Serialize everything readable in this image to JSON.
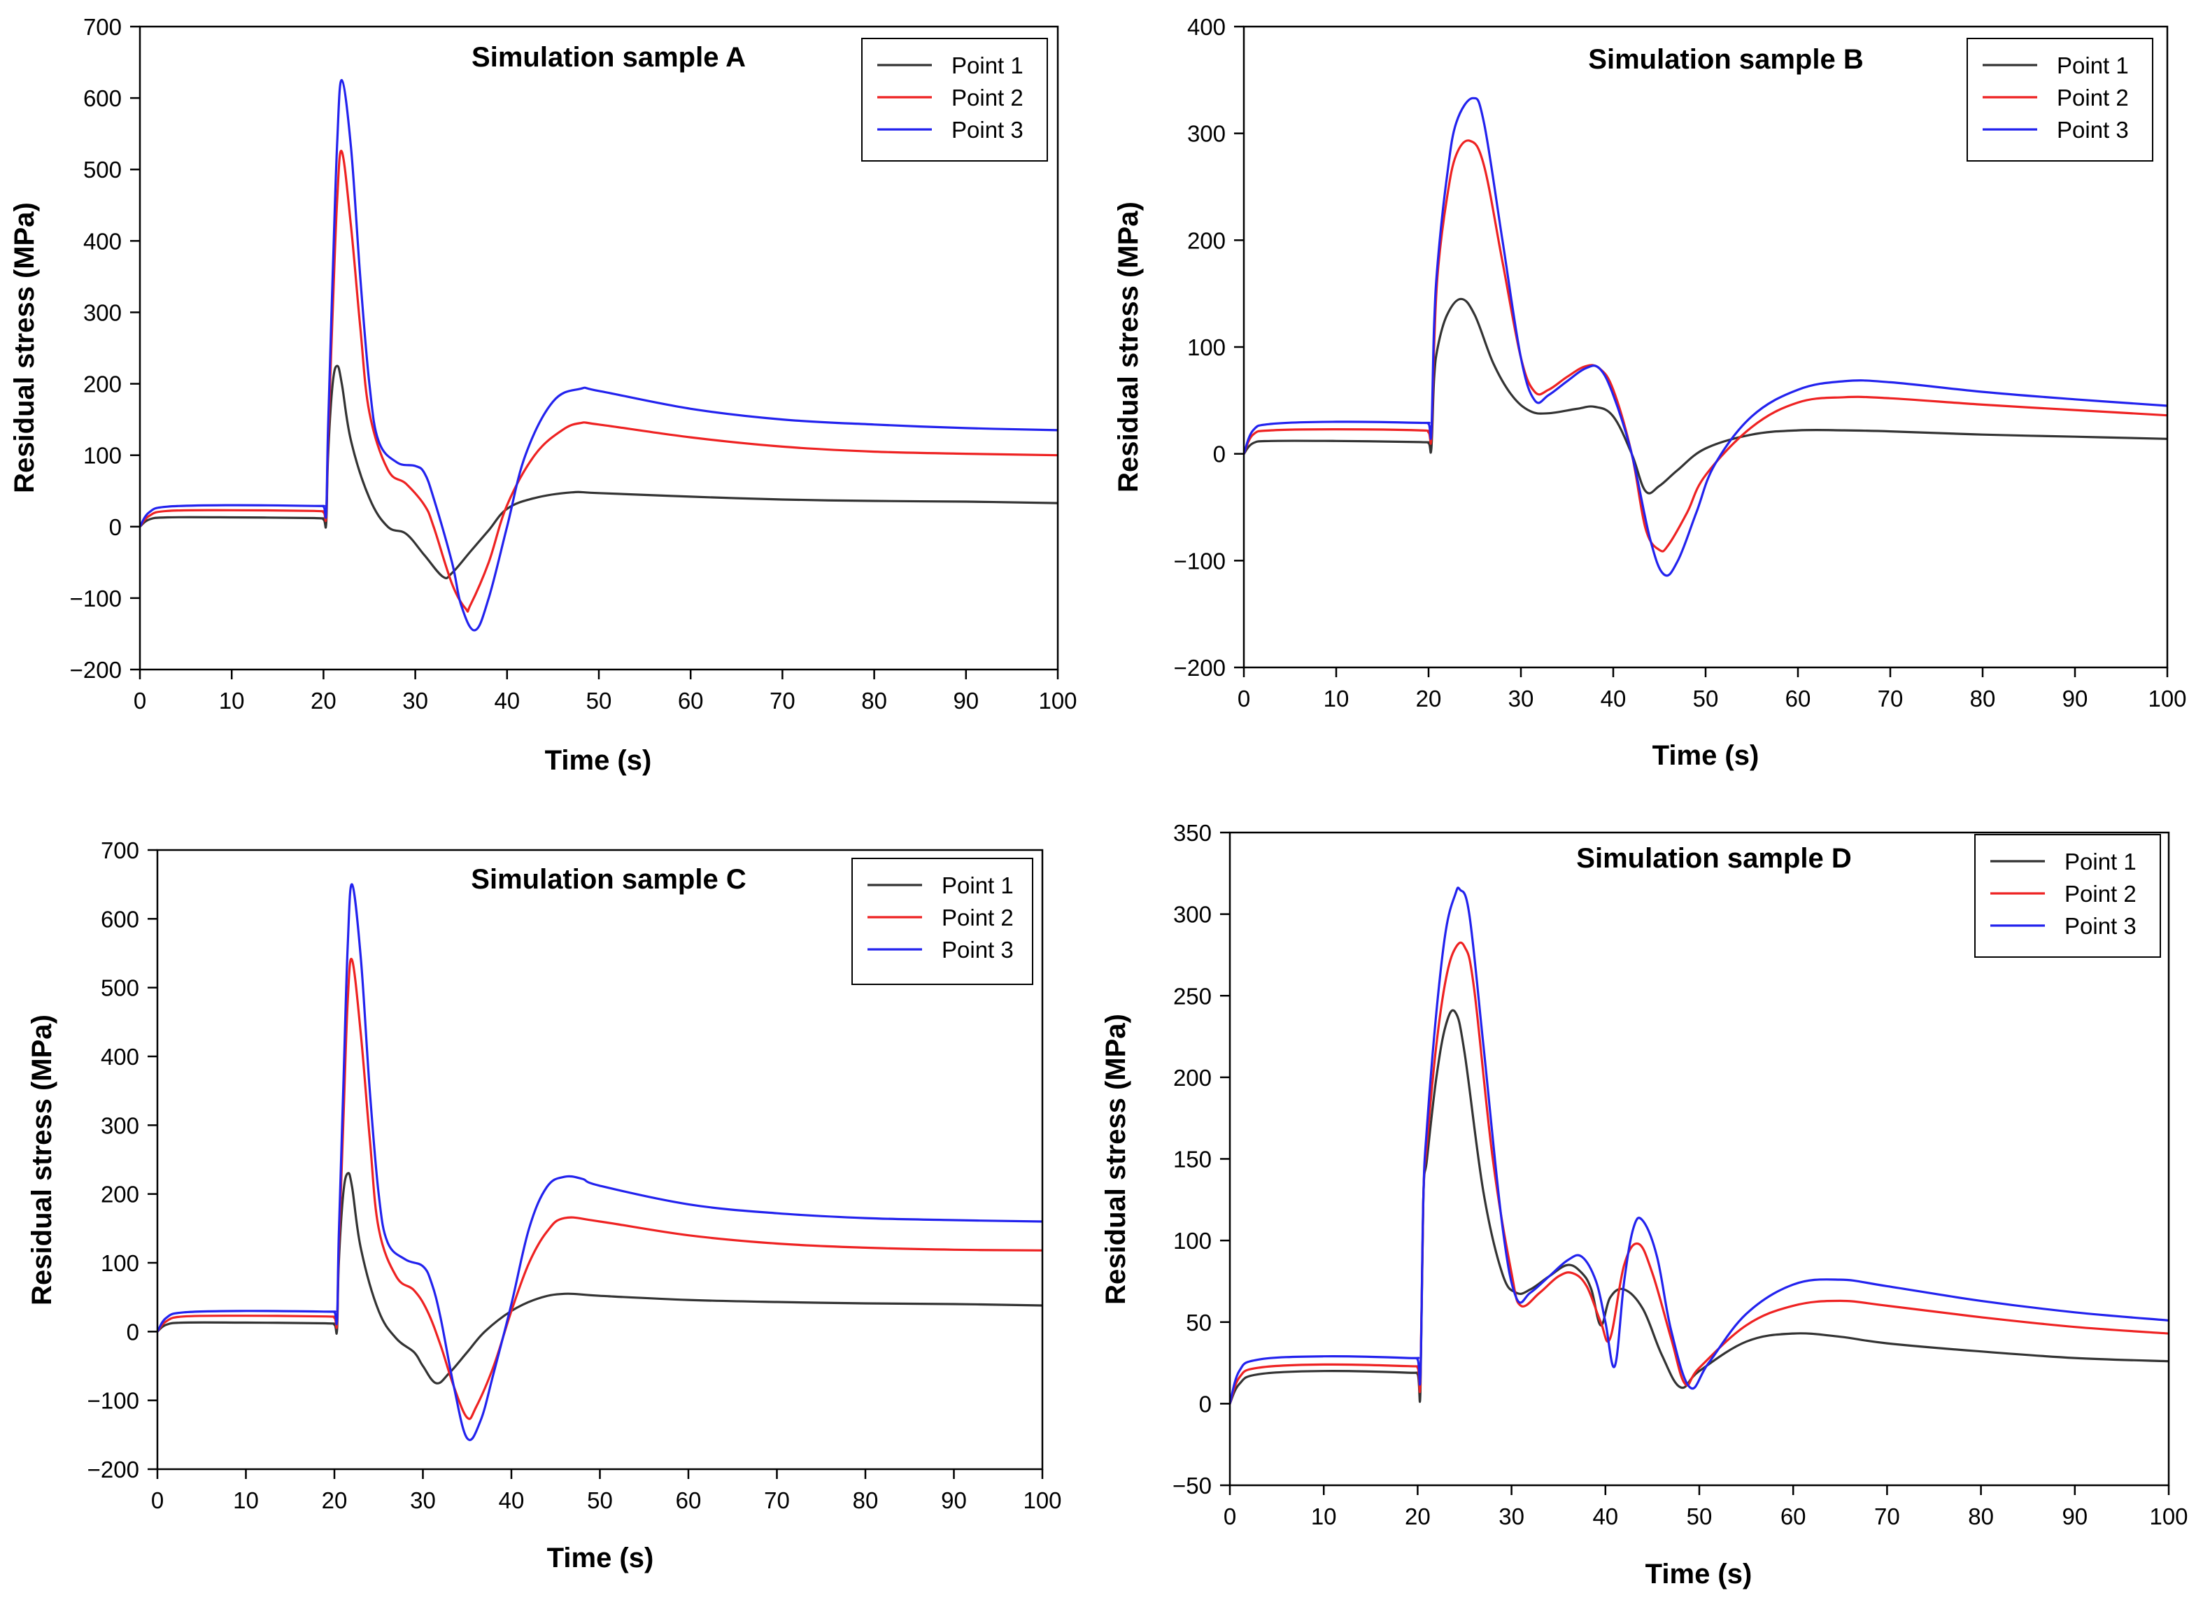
{
  "chart_data": [
    {
      "type": "line",
      "title": "Simulation sample A",
      "xlabel": "Time (s)",
      "ylabel": "Residual stress (MPa)",
      "xlim": [
        0,
        100
      ],
      "ylim": [
        -200,
        700
      ],
      "xticks": [
        0,
        10,
        20,
        30,
        40,
        50,
        60,
        70,
        80,
        90,
        100
      ],
      "yticks": [
        -200,
        -100,
        0,
        100,
        200,
        300,
        400,
        500,
        600,
        700
      ],
      "xtick_labels": [
        "0",
        "10",
        "20",
        "30",
        "40",
        "50",
        "60",
        "70",
        "80",
        "90",
        "100"
      ],
      "ytick_labels": [
        "−200",
        "−100",
        "0",
        "100",
        "200",
        "300",
        "400",
        "500",
        "600",
        "700"
      ],
      "legend": "top-right",
      "grid": false,
      "series": [
        {
          "name": "Point 1",
          "color": "#333333",
          "x": [
            0,
            1,
            3,
            10,
            19,
            20,
            20.3,
            20.5,
            21,
            21.5,
            22,
            23,
            25,
            27,
            29,
            31,
            33,
            34,
            36,
            38,
            40,
            43,
            47,
            50,
            60,
            70,
            80,
            90,
            100
          ],
          "y": [
            0,
            10,
            13,
            13,
            12,
            10,
            5,
            100,
            200,
            225,
            200,
            120,
            40,
            0,
            -10,
            -40,
            -70,
            -65,
            -35,
            -5,
            25,
            40,
            48,
            47,
            42,
            38,
            36,
            35,
            33
          ]
        },
        {
          "name": "Point 2",
          "color": "#ee2222",
          "x": [
            0,
            1,
            3,
            10,
            19,
            20,
            20.3,
            20.5,
            21,
            21.5,
            22,
            23,
            24,
            25,
            27,
            29,
            31,
            32,
            34,
            35.5,
            36,
            38,
            40,
            43,
            46,
            48,
            50,
            60,
            70,
            80,
            90,
            100
          ],
          "y": [
            0,
            15,
            22,
            23,
            22,
            20,
            15,
            120,
            300,
            460,
            525,
            420,
            280,
            160,
            80,
            60,
            30,
            0,
            -80,
            -115,
            -110,
            -50,
            30,
            100,
            135,
            145,
            143,
            125,
            112,
            105,
            102,
            100
          ]
        },
        {
          "name": "Point 3",
          "color": "#2222ee",
          "x": [
            0,
            1,
            3,
            10,
            19,
            20,
            20.3,
            20.5,
            21,
            21.5,
            22,
            23,
            24,
            25,
            26,
            28,
            30,
            31,
            32,
            34,
            35,
            36.5,
            38,
            40,
            42,
            45,
            48,
            50,
            60,
            70,
            80,
            90,
            100
          ],
          "y": [
            0,
            20,
            28,
            30,
            29,
            28,
            20,
            140,
            350,
            540,
            625,
            530,
            350,
            200,
            120,
            90,
            85,
            75,
            40,
            -50,
            -110,
            -145,
            -100,
            0,
            100,
            175,
            193,
            190,
            165,
            150,
            143,
            138,
            135
          ]
        }
      ]
    },
    {
      "type": "line",
      "title": "Simulation sample B",
      "xlabel": "Time (s)",
      "ylabel": "Residual stress (MPa)",
      "xlim": [
        0,
        100
      ],
      "ylim": [
        -200,
        400
      ],
      "xticks": [
        0,
        10,
        20,
        30,
        40,
        50,
        60,
        70,
        80,
        90,
        100
      ],
      "yticks": [
        -200,
        -100,
        0,
        100,
        200,
        300,
        400
      ],
      "xtick_labels": [
        "0",
        "10",
        "20",
        "30",
        "40",
        "50",
        "60",
        "70",
        "80",
        "90",
        "100"
      ],
      "ytick_labels": [
        "−200",
        "−100",
        "0",
        "100",
        "200",
        "300",
        "400"
      ],
      "legend": "top-right",
      "grid": false,
      "series": [
        {
          "name": "Point 1",
          "color": "#333333",
          "x": [
            0,
            1,
            3,
            10,
            19,
            20,
            20.3,
            20.6,
            21,
            22,
            23.5,
            25,
            27,
            29,
            31,
            33,
            36,
            38,
            40,
            42,
            43.5,
            45,
            47,
            50,
            55,
            60,
            65,
            70,
            80,
            90,
            100
          ],
          "y": [
            0,
            10,
            12,
            12,
            11,
            10,
            5,
            70,
            100,
            130,
            145,
            130,
            85,
            55,
            40,
            38,
            42,
            44,
            35,
            0,
            -35,
            -30,
            -15,
            5,
            18,
            22,
            22,
            21,
            18,
            16,
            14
          ]
        },
        {
          "name": "Point 2",
          "color": "#ee2222",
          "x": [
            0,
            1,
            3,
            10,
            19,
            20,
            20.3,
            20.6,
            21,
            22,
            23,
            24.5,
            26,
            28,
            30,
            31.5,
            33,
            35,
            37,
            38.5,
            40,
            42,
            43.5,
            45,
            46,
            48,
            50,
            55,
            60,
            65,
            70,
            80,
            90,
            100
          ],
          "y": [
            0,
            18,
            22,
            23,
            22,
            20,
            15,
            100,
            170,
            240,
            280,
            293,
            270,
            180,
            90,
            58,
            60,
            72,
            82,
            80,
            60,
            0,
            -70,
            -90,
            -85,
            -55,
            -20,
            25,
            48,
            53,
            52,
            46,
            41,
            36
          ]
        },
        {
          "name": "Point 3",
          "color": "#2222ee",
          "x": [
            0,
            1,
            3,
            10,
            19,
            20,
            20.3,
            20.6,
            21,
            22,
            23,
            24.8,
            26,
            28,
            30,
            31.5,
            33,
            35,
            37,
            38.5,
            40,
            42,
            44,
            45.5,
            47,
            49,
            51,
            55,
            60,
            65,
            70,
            80,
            90,
            100
          ],
          "y": [
            0,
            22,
            28,
            30,
            29,
            28,
            20,
            120,
            180,
            260,
            310,
            333,
            310,
            200,
            90,
            50,
            55,
            68,
            80,
            80,
            55,
            0,
            -80,
            -113,
            -100,
            -55,
            -10,
            35,
            60,
            68,
            67,
            58,
            51,
            45
          ]
        }
      ]
    },
    {
      "type": "line",
      "title": "Simulation sample C",
      "xlabel": "Time (s)",
      "ylabel": "Residual stress (MPa)",
      "xlim": [
        0,
        100
      ],
      "ylim": [
        -200,
        700
      ],
      "xticks": [
        0,
        10,
        20,
        30,
        40,
        50,
        60,
        70,
        80,
        90,
        100
      ],
      "yticks": [
        -200,
        -100,
        0,
        100,
        200,
        300,
        400,
        500,
        600,
        700
      ],
      "xtick_labels": [
        "0",
        "10",
        "20",
        "30",
        "40",
        "50",
        "60",
        "70",
        "80",
        "90",
        "100"
      ],
      "ytick_labels": [
        "−200",
        "−100",
        "0",
        "100",
        "200",
        "300",
        "400",
        "500",
        "600",
        "700"
      ],
      "legend": "top-right",
      "grid": false,
      "series": [
        {
          "name": "Point 1",
          "color": "#333333",
          "x": [
            0,
            1,
            3,
            10,
            19,
            20,
            20.3,
            20.5,
            21,
            21.5,
            22,
            23,
            25,
            27,
            29,
            30,
            31.5,
            33,
            35,
            37,
            40,
            43,
            46,
            50,
            60,
            70,
            80,
            90,
            100
          ],
          "y": [
            0,
            10,
            13,
            13,
            12,
            10,
            3,
            100,
            200,
            230,
            210,
            120,
            30,
            -10,
            -30,
            -50,
            -75,
            -60,
            -30,
            0,
            30,
            48,
            55,
            52,
            46,
            43,
            41,
            40,
            38
          ]
        },
        {
          "name": "Point 2",
          "color": "#ee2222",
          "x": [
            0,
            1,
            3,
            10,
            19,
            20,
            20.3,
            20.5,
            21,
            21.5,
            22,
            23,
            24,
            25,
            27,
            29,
            30.5,
            32,
            33.5,
            35,
            36,
            38,
            40,
            42,
            44,
            46,
            50,
            60,
            70,
            80,
            90,
            100
          ],
          "y": [
            0,
            15,
            22,
            23,
            22,
            20,
            12,
            120,
            300,
            480,
            540,
            430,
            280,
            150,
            80,
            60,
            30,
            -20,
            -80,
            -125,
            -110,
            -50,
            30,
            100,
            145,
            165,
            160,
            140,
            128,
            122,
            119,
            118
          ]
        },
        {
          "name": "Point 3",
          "color": "#2222ee",
          "x": [
            0,
            1,
            3,
            10,
            19,
            20,
            20.3,
            20.5,
            21,
            21.5,
            22,
            23,
            24,
            25,
            26,
            28,
            30,
            31,
            32,
            33.5,
            35,
            36.5,
            38,
            40,
            42,
            44,
            46,
            48,
            50,
            60,
            70,
            80,
            90,
            100
          ],
          "y": [
            0,
            20,
            28,
            30,
            29,
            28,
            18,
            140,
            350,
            560,
            650,
            540,
            350,
            200,
            130,
            105,
            95,
            70,
            20,
            -80,
            -155,
            -130,
            -60,
            40,
            150,
            210,
            225,
            222,
            212,
            185,
            172,
            165,
            162,
            160
          ]
        }
      ]
    },
    {
      "type": "line",
      "title": "Simulation sample D",
      "xlabel": "Time (s)",
      "ylabel": "Residual stress (MPa)",
      "xlim": [
        0,
        100
      ],
      "ylim": [
        -50,
        350
      ],
      "xticks": [
        0,
        10,
        20,
        30,
        40,
        50,
        60,
        70,
        80,
        90,
        100
      ],
      "yticks": [
        -50,
        0,
        50,
        100,
        150,
        200,
        250,
        300,
        350
      ],
      "xtick_labels": [
        "0",
        "10",
        "20",
        "30",
        "40",
        "50",
        "60",
        "70",
        "80",
        "90",
        "100"
      ],
      "ytick_labels": [
        "−50",
        "0",
        "50",
        "100",
        "150",
        "200",
        "250",
        "300",
        "350"
      ],
      "legend": "top-right",
      "grid": false,
      "series": [
        {
          "name": "Point 1",
          "color": "#333333",
          "x": [
            0,
            1,
            3,
            10,
            19,
            20,
            20.3,
            20.6,
            21,
            22,
            23,
            24,
            25,
            27,
            29,
            30.5,
            32,
            34,
            36,
            37.5,
            38.5,
            39.5,
            40.5,
            42,
            44,
            46,
            48,
            50,
            55,
            60,
            65,
            70,
            80,
            90,
            100
          ],
          "y": [
            0,
            12,
            18,
            20,
            19,
            18,
            8,
            125,
            150,
            200,
            232,
            240,
            215,
            130,
            80,
            68,
            70,
            78,
            85,
            80,
            70,
            48,
            65,
            70,
            58,
            30,
            10,
            20,
            38,
            43,
            41,
            37,
            32,
            28,
            26
          ]
        },
        {
          "name": "Point 2",
          "color": "#ee2222",
          "x": [
            0,
            1,
            3,
            10,
            19,
            20,
            20.3,
            20.6,
            21,
            22,
            23,
            24,
            25,
            26,
            28,
            30,
            31,
            33,
            35,
            36.5,
            38,
            39.5,
            40.5,
            42,
            43.5,
            45,
            47,
            48.5,
            50,
            55,
            60,
            65,
            70,
            80,
            90,
            100
          ],
          "y": [
            0,
            16,
            22,
            24,
            23,
            22,
            14,
            125,
            160,
            220,
            260,
            279,
            280,
            255,
            150,
            80,
            60,
            68,
            78,
            80,
            72,
            50,
            40,
            85,
            98,
            80,
            40,
            12,
            22,
            48,
            60,
            63,
            60,
            53,
            47,
            43
          ]
        },
        {
          "name": "Point 3",
          "color": "#2222ee",
          "x": [
            0,
            1,
            3,
            10,
            19,
            20,
            20.3,
            20.6,
            21,
            22,
            23,
            24,
            24.5,
            25.5,
            27,
            29,
            30.5,
            32,
            34,
            36,
            37.5,
            39,
            40,
            41,
            42,
            43,
            44,
            45.5,
            47,
            49,
            51,
            55,
            60,
            65,
            70,
            80,
            90,
            100
          ],
          "y": [
            0,
            20,
            27,
            29,
            28,
            27,
            18,
            125,
            170,
            240,
            290,
            312,
            315,
            300,
            220,
            110,
            65,
            68,
            78,
            88,
            90,
            75,
            50,
            23,
            75,
            108,
            112,
            90,
            45,
            10,
            25,
            55,
            73,
            76,
            72,
            63,
            56,
            51
          ]
        }
      ]
    }
  ]
}
